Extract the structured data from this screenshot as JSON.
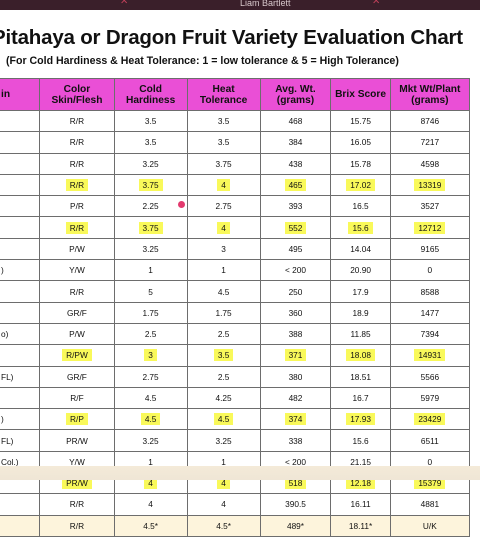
{
  "window": {
    "presenter_name": "Liam Bartlett"
  },
  "title": "Pitahaya or Dragon Fruit Variety Evaluation Chart",
  "subtitle": "(For Cold Hardiness & Heat Tolerance: 1 = low tolerance & 5 = High Tolerance)",
  "table": {
    "headers": [
      "in",
      "Color Skin/Flesh",
      "Cold Hardiness",
      "Heat Tolerance",
      "Avg. Wt. (grams)",
      "Brix Score",
      "Mkt Wt/Plant (grams)"
    ],
    "highlight_color": "#f9f95a",
    "header_color": "#ea4fd6",
    "rows": [
      {
        "name": "",
        "color": "R/R",
        "cold": "3.5",
        "heat": "3.5",
        "wt": "468",
        "brix": "15.75",
        "mkt": "8746",
        "hl": false
      },
      {
        "name": "",
        "color": "R/R",
        "cold": "3.5",
        "heat": "3.5",
        "wt": "384",
        "brix": "16.05",
        "mkt": "7217",
        "hl": false
      },
      {
        "name": "",
        "color": "R/R",
        "cold": "3.25",
        "heat": "3.75",
        "wt": "438",
        "brix": "15.78",
        "mkt": "4598",
        "hl": false
      },
      {
        "name": "",
        "color": "R/R",
        "cold": "3.75",
        "heat": "4",
        "wt": "465",
        "brix": "17.02",
        "mkt": "13319",
        "hl": true
      },
      {
        "name": "",
        "color": "P/R",
        "cold": "2.25",
        "heat": "2.75",
        "wt": "393",
        "brix": "16.5",
        "mkt": "3527",
        "hl": false
      },
      {
        "name": "",
        "color": "R/R",
        "cold": "3.75",
        "heat": "4",
        "wt": "552",
        "brix": "15.6",
        "mkt": "12712",
        "hl": true
      },
      {
        "name": "",
        "color": "P/W",
        "cold": "3.25",
        "heat": "3",
        "wt": "495",
        "brix": "14.04",
        "mkt": "9165",
        "hl": false
      },
      {
        "name": ")",
        "color": "Y/W",
        "cold": "1",
        "heat": "1",
        "wt": "< 200",
        "brix": "20.90",
        "mkt": "0",
        "hl": false
      },
      {
        "name": "",
        "color": "R/R",
        "cold": "5",
        "heat": "4.5",
        "wt": "250",
        "brix": "17.9",
        "mkt": "8588",
        "hl": false
      },
      {
        "name": "",
        "color": "GR/F",
        "cold": "1.75",
        "heat": "1.75",
        "wt": "360",
        "brix": "18.9",
        "mkt": "1477",
        "hl": false
      },
      {
        "name": "o)",
        "color": "P/W",
        "cold": "2.5",
        "heat": "2.5",
        "wt": "388",
        "brix": "11.85",
        "mkt": "7394",
        "hl": false
      },
      {
        "name": "",
        "color": "R/PW",
        "cold": "3",
        "heat": "3.5",
        "wt": "371",
        "brix": "18.08",
        "mkt": "14931",
        "hl": true
      },
      {
        "name": "FL)",
        "color": "GR/F",
        "cold": "2.75",
        "heat": "2.5",
        "wt": "380",
        "brix": "18.51",
        "mkt": "5566",
        "hl": false
      },
      {
        "name": "",
        "color": "R/F",
        "cold": "4.5",
        "heat": "4.25",
        "wt": "482",
        "brix": "16.7",
        "mkt": "5979",
        "hl": false
      },
      {
        "name": ")",
        "color": "R/P",
        "cold": "4.5",
        "heat": "4.5",
        "wt": "374",
        "brix": "17.93",
        "mkt": "23429",
        "hl": true
      },
      {
        "name": "FL)",
        "color": "PR/W",
        "cold": "3.25",
        "heat": "3.25",
        "wt": "338",
        "brix": "15.6",
        "mkt": "6511",
        "hl": false
      },
      {
        "name": "Col.)",
        "color": "Y/W",
        "cold": "1",
        "heat": "1",
        "wt": "< 200",
        "brix": "21.15",
        "mkt": "0",
        "hl": false
      },
      {
        "name": "",
        "color": "PR/W",
        "cold": "4",
        "heat": "4",
        "wt": "518",
        "brix": "12.18",
        "mkt": "15379",
        "hl": true
      },
      {
        "name": "",
        "color": "R/R",
        "cold": "4",
        "heat": "4",
        "wt": "390.5",
        "brix": "16.11",
        "mkt": "4881",
        "hl": false
      },
      {
        "name": "",
        "color": "R/R",
        "cold": "4.5*",
        "heat": "4.5*",
        "wt": "489*",
        "brix": "18.11*",
        "mkt": "U/K",
        "hl": false
      }
    ]
  }
}
